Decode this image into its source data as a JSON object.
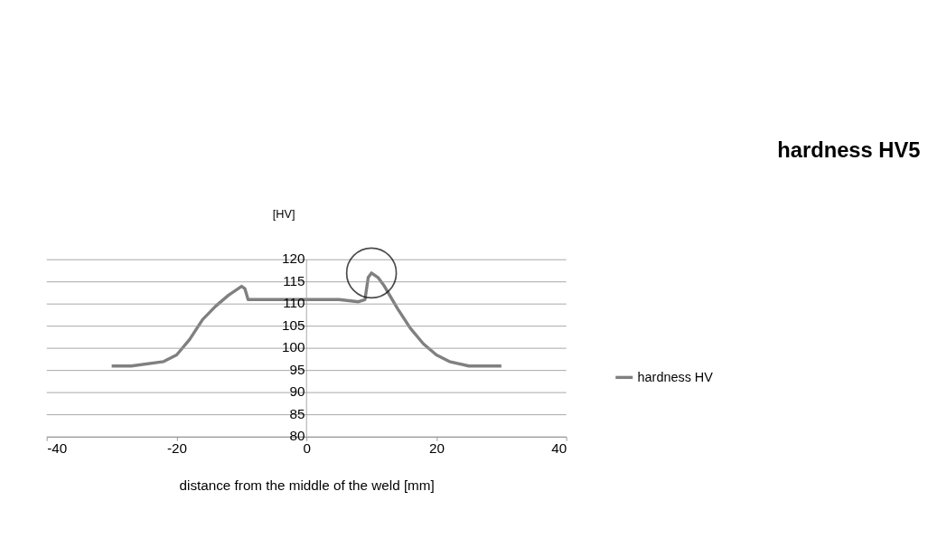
{
  "chart_data": {
    "type": "line",
    "title": "hardness HV5",
    "ylabel": "[HV]",
    "xlabel": "distance from the middle of the weld [mm]",
    "series": [
      {
        "name": "hardness HV",
        "color": "#808080",
        "x": [
          -30,
          -27,
          -22,
          -20,
          -18,
          -16,
          -14,
          -12,
          -10,
          -9.5,
          -9,
          -8,
          0,
          5,
          8,
          9,
          9.5,
          10,
          11,
          12,
          14,
          16,
          18,
          20,
          22,
          25,
          27,
          30
        ],
        "values": [
          96,
          96,
          97,
          98.5,
          102,
          106.5,
          109.5,
          112,
          114,
          113.5,
          111,
          111,
          111,
          111,
          110.5,
          111,
          116,
          117,
          116,
          114,
          109,
          104.5,
          101,
          98.5,
          97,
          96,
          96,
          96
        ]
      }
    ],
    "xlim": [
      -40,
      40
    ],
    "xticks": [
      -40,
      -20,
      0,
      20,
      40
    ],
    "ylim": [
      80,
      120
    ],
    "yticks": [
      80,
      85,
      90,
      95,
      100,
      105,
      110,
      115,
      120
    ],
    "grid": "y",
    "legend": "right",
    "marker": "none",
    "line_style": "solid"
  }
}
